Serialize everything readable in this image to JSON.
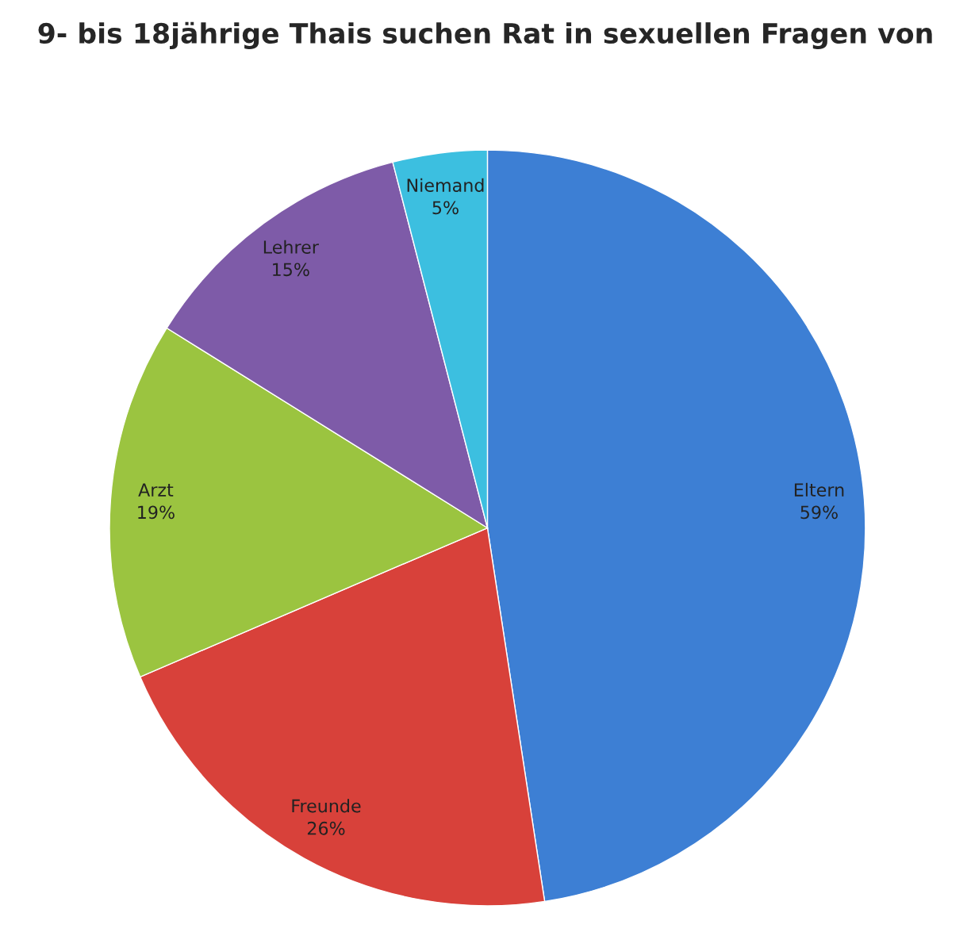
{
  "chart_data": {
    "type": "pie",
    "title": "9- bis 18jährige Thais suchen Rat in sexuellen Fragen von",
    "categories": [
      "Eltern",
      "Freunde",
      "Arzt",
      "Lehrer",
      "Niemand"
    ],
    "values": [
      59,
      26,
      19,
      15,
      5
    ],
    "value_labels": [
      "59%",
      "26%",
      "19%",
      "15%",
      "5%"
    ],
    "colors": [
      "#3d7fd4",
      "#d8413a",
      "#9bc440",
      "#7e5ba8",
      "#3cbfe0"
    ]
  }
}
